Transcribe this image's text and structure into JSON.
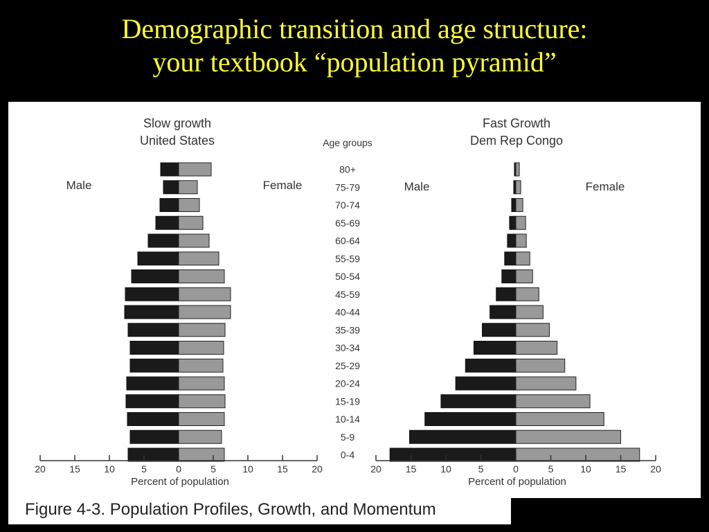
{
  "slide": {
    "title_line1": "Demographic transition and age structure:",
    "title_line2": "your textbook “population pyramid”",
    "caption": "Figure 4-3. Population Profiles, Growth, and Momentum",
    "title_color": "#ffff33"
  },
  "chart_data": [
    {
      "type": "bar",
      "title": "Slow growth",
      "subtitle": "United States",
      "left_label": "Male",
      "right_label": "Female",
      "xlabel": "Percent of population",
      "xlim": [
        -20,
        20
      ],
      "xticks": [
        20,
        15,
        10,
        5,
        0,
        5,
        10,
        15,
        20
      ],
      "categories": [
        "80+",
        "75-79",
        "70-74",
        "65-69",
        "60-64",
        "55-59",
        "50-54",
        "45-59",
        "40-44",
        "35-39",
        "30-34",
        "25-29",
        "20-24",
        "15-19",
        "10-14",
        "5-9",
        "0-4"
      ],
      "series": [
        {
          "name": "Male",
          "color": "#1a1a1a",
          "values": [
            2.6,
            2.2,
            2.7,
            3.3,
            4.4,
            5.9,
            6.8,
            7.7,
            7.8,
            7.3,
            7.0,
            7.0,
            7.5,
            7.6,
            7.4,
            7.0,
            7.3
          ]
        },
        {
          "name": "Female",
          "color": "#999999",
          "values": [
            4.7,
            2.7,
            3.0,
            3.5,
            4.4,
            5.8,
            6.6,
            7.5,
            7.5,
            6.7,
            6.5,
            6.4,
            6.6,
            6.7,
            6.6,
            6.2,
            6.6
          ]
        }
      ]
    },
    {
      "type": "bar",
      "title": "Fast Growth",
      "subtitle": "Dem Rep Congo",
      "left_label": "Male",
      "right_label": "Female",
      "xlabel": "Percent of population",
      "xlim": [
        -20,
        20
      ],
      "xticks": [
        20,
        15,
        10,
        5,
        0,
        5,
        10,
        15,
        20
      ],
      "categories": [
        "80+",
        "75-79",
        "70-74",
        "65-69",
        "60-64",
        "55-59",
        "50-54",
        "45-59",
        "40-44",
        "35-39",
        "30-34",
        "25-29",
        "20-24",
        "15-19",
        "10-14",
        "5-9",
        "0-4"
      ],
      "series": [
        {
          "name": "Male",
          "color": "#1a1a1a",
          "values": [
            0.2,
            0.3,
            0.6,
            0.9,
            1.2,
            1.6,
            2.0,
            2.8,
            3.7,
            4.8,
            6.0,
            7.2,
            8.6,
            10.7,
            13.0,
            15.2,
            18.0
          ]
        },
        {
          "name": "Female",
          "color": "#999999",
          "values": [
            0.5,
            0.7,
            1.0,
            1.4,
            1.5,
            2.0,
            2.4,
            3.3,
            3.9,
            4.8,
            5.9,
            7.0,
            8.6,
            10.6,
            12.6,
            15.0,
            17.7
          ]
        }
      ]
    }
  ],
  "age_groups_label": "Age groups"
}
